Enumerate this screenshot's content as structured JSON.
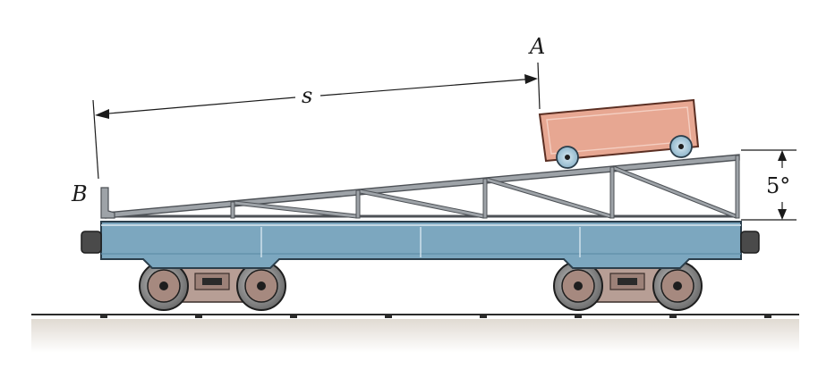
{
  "figure": {
    "label_a": "A",
    "label_b": "B",
    "label_distance": "s",
    "label_angle": "5°",
    "angle_deg": 5
  },
  "colors": {
    "car_body": "#7ca7bf",
    "car_body_dark": "#5f8ea9",
    "box_fill": "#e7a792",
    "truss": "#8f9398",
    "wheel_hub": "#b9d5e3",
    "bogie": "#b79e95",
    "ground": "#d9d3cb"
  }
}
